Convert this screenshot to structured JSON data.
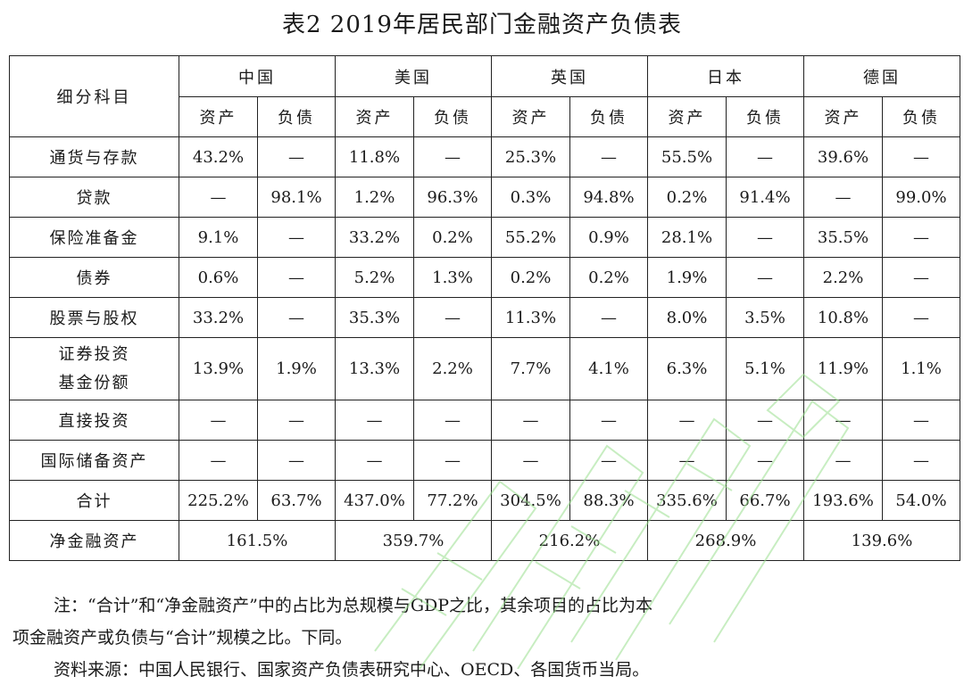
{
  "title": "表2  2019年居民部门金融资产负债表",
  "table": {
    "corner_header": "细分科目",
    "countries": [
      "中国",
      "美国",
      "英国",
      "日本",
      "德国"
    ],
    "subheaders": [
      "资产",
      "负债",
      "资产",
      "负债",
      "资产",
      "负债",
      "资产",
      "负债",
      "资产",
      "负债"
    ],
    "rows": [
      {
        "label": "通货与存款",
        "cells": [
          "43.2%",
          "—",
          "11.8%",
          "—",
          "25.3%",
          "—",
          "55.5%",
          "—",
          "39.6%",
          "—"
        ]
      },
      {
        "label": "贷款",
        "cells": [
          "—",
          "98.1%",
          "1.2%",
          "96.3%",
          "0.3%",
          "94.8%",
          "0.2%",
          "91.4%",
          "—",
          "99.0%"
        ]
      },
      {
        "label": "保险准备金",
        "cells": [
          "9.1%",
          "—",
          "33.2%",
          "0.2%",
          "55.2%",
          "0.9%",
          "28.1%",
          "—",
          "35.5%",
          "—"
        ]
      },
      {
        "label": "债券",
        "cells": [
          "0.6%",
          "—",
          "5.2%",
          "1.3%",
          "0.2%",
          "0.2%",
          "1.9%",
          "—",
          "2.2%",
          "—"
        ]
      },
      {
        "label": "股票与股权",
        "cells": [
          "33.2%",
          "—",
          "35.3%",
          "—",
          "11.3%",
          "—",
          "8.0%",
          "3.5%",
          "10.8%",
          "—"
        ]
      }
    ],
    "fund_row": {
      "label_line1": "证券投资",
      "label_line2": "基金份额",
      "cells": [
        "13.9%",
        "1.9%",
        "13.3%",
        "2.2%",
        "7.7%",
        "4.1%",
        "6.3%",
        "5.1%",
        "11.9%",
        "1.1%"
      ]
    },
    "rows_after": [
      {
        "label": "直接投资",
        "cells": [
          "—",
          "—",
          "—",
          "—",
          "—",
          "—",
          "—",
          "—",
          "—",
          "—"
        ]
      },
      {
        "label": "国际储备资产",
        "cells": [
          "—",
          "—",
          "—",
          "—",
          "—",
          "—",
          "—",
          "—",
          "—",
          "—"
        ]
      },
      {
        "label": "合计",
        "cells": [
          "225.2%",
          "63.7%",
          "437.0%",
          "77.2%",
          "304.5%",
          "88.3%",
          "335.6%",
          "66.7%",
          "193.6%",
          "54.0%"
        ]
      }
    ],
    "net_row": {
      "label": "净金融资产",
      "cells": [
        "161.5%",
        "359.7%",
        "216.2%",
        "268.9%",
        "139.6%"
      ]
    }
  },
  "notes": {
    "line1": "注：“合计”和“净金融资产”中的占比为总规模与GDP之比，其余项目的占比为本",
    "line2": "项金融资产或负债与“合计”规模之比。下同。",
    "line3": "资料来源：中国人民银行、国家资产负债表研究中心、OECD、各国货币当局。"
  },
  "colors": {
    "text": "#1a1a1a",
    "border": "#222222",
    "watermark": "#9be08f"
  }
}
